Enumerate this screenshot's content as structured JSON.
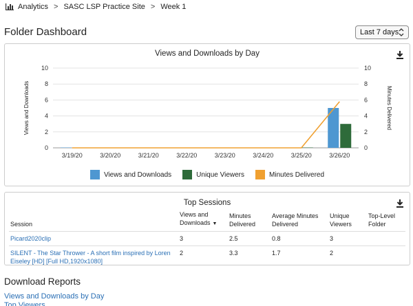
{
  "breadcrumb": {
    "icon": "bar-chart-icon",
    "items": [
      "Analytics",
      "SASC LSP Practice Site",
      "Week 1"
    ],
    "separator": ">"
  },
  "page": {
    "title": "Folder Dashboard"
  },
  "range_select": {
    "value": "Last 7 days"
  },
  "chart_panel": {
    "title": "Views and Downloads by Day"
  },
  "chart_data": {
    "type": "bar",
    "title": "Views and Downloads by Day",
    "categories": [
      "3/19/20",
      "3/20/20",
      "3/21/20",
      "3/22/20",
      "3/23/20",
      "3/24/20",
      "3/25/20",
      "3/26/20"
    ],
    "series": [
      {
        "name": "Views and Downloads",
        "type": "bar",
        "color": "#4e97d1",
        "values": [
          0,
          0,
          0,
          0,
          0,
          0,
          0,
          5
        ]
      },
      {
        "name": "Unique Viewers",
        "type": "bar",
        "color": "#2e6b3a",
        "values": [
          0,
          0,
          0,
          0,
          0,
          0,
          0,
          3
        ]
      },
      {
        "name": "Minutes Delivered",
        "type": "line",
        "color": "#f0a030",
        "axis": "right",
        "values": [
          0,
          0,
          0,
          0,
          0,
          0,
          0,
          5.8
        ]
      }
    ],
    "ylabel": "Views and Downloads",
    "y2label": "Minutes Delivered",
    "ylim": [
      0,
      10
    ],
    "y2lim": [
      0,
      10
    ],
    "yticks": [
      "0",
      "2",
      "4",
      "6",
      "8",
      "10"
    ],
    "grid": true,
    "legend": "bottom"
  },
  "sessions_panel": {
    "title": "Top Sessions",
    "columns": {
      "session": "Session",
      "views_l1": "Views and",
      "views_l2": "Downloads",
      "minutes_l1": "Minutes",
      "minutes_l2": "Delivered",
      "avg_l1": "Average Minutes",
      "avg_l2": "Delivered",
      "unique_l1": "Unique",
      "unique_l2": "Viewers",
      "folder_l1": "Top-Level",
      "folder_l2": "Folder"
    },
    "sort_indicator": "▼",
    "rows": [
      {
        "session": "Picard2020clip",
        "views": "3",
        "minutes": "2.5",
        "avg": "0.8",
        "unique": "3",
        "folder": ""
      },
      {
        "session_l1": "SILENT - The Star Thrower - A short film inspired by Loren",
        "session_l2": "Eiseley [HD] [Full HD,1920x1080]",
        "views": "2",
        "minutes": "3.3",
        "avg": "1.7",
        "unique": "2",
        "folder": ""
      }
    ]
  },
  "download_reports": {
    "title": "Download Reports",
    "link1": "Views and Downloads by Day",
    "link2": "Top Viewers"
  }
}
